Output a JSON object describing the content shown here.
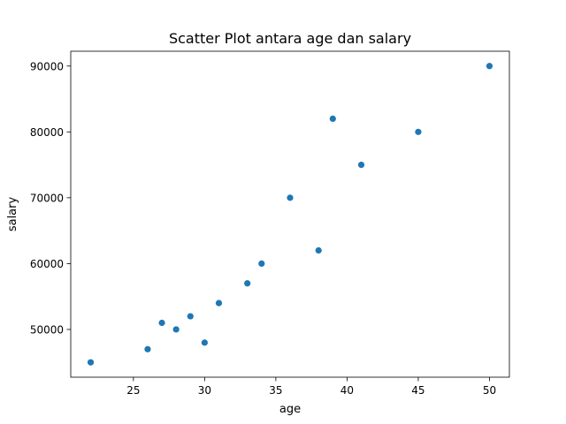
{
  "chart_data": {
    "type": "scatter",
    "title": "Scatter Plot antara age dan salary",
    "xlabel": "age",
    "ylabel": "salary",
    "xlim": [
      20.6,
      51.4
    ],
    "ylim": [
      42750,
      92250
    ],
    "xticks": [
      25,
      30,
      35,
      40,
      45,
      50
    ],
    "yticks": [
      50000,
      60000,
      70000,
      80000,
      90000
    ],
    "grid": false,
    "legend": "none",
    "point_color": "#1f77b4",
    "points": [
      {
        "x": 22,
        "y": 45000
      },
      {
        "x": 26,
        "y": 47000
      },
      {
        "x": 27,
        "y": 51000
      },
      {
        "x": 28,
        "y": 50000
      },
      {
        "x": 29,
        "y": 52000
      },
      {
        "x": 30,
        "y": 48000
      },
      {
        "x": 31,
        "y": 54000
      },
      {
        "x": 33,
        "y": 57000
      },
      {
        "x": 34,
        "y": 60000
      },
      {
        "x": 36,
        "y": 70000
      },
      {
        "x": 38,
        "y": 62000
      },
      {
        "x": 39,
        "y": 82000
      },
      {
        "x": 41,
        "y": 75000
      },
      {
        "x": 45,
        "y": 80000
      },
      {
        "x": 50,
        "y": 90000
      }
    ]
  }
}
